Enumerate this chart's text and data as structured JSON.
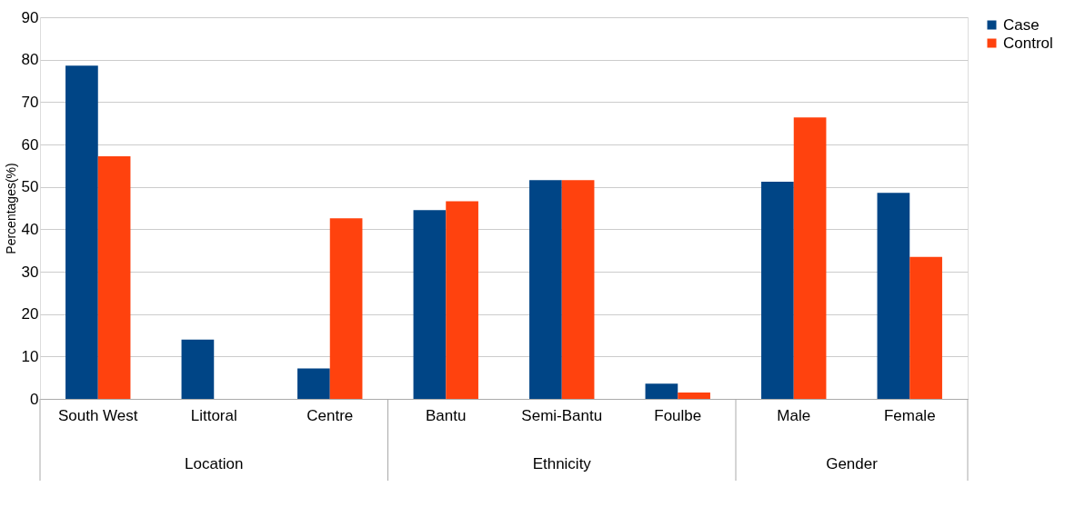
{
  "chart_data": {
    "type": "bar",
    "ylabel": "Percentages(%)",
    "categories": [
      "South West",
      "Littoral",
      "Centre",
      "Bantu",
      "Semi-Bantu",
      "Foulbe",
      "Male",
      "Female"
    ],
    "series": [
      {
        "name": "Case",
        "color": "#004586",
        "values": [
          78.6,
          14.0,
          7.2,
          44.5,
          51.6,
          3.6,
          51.2,
          48.6
        ]
      },
      {
        "name": "Control",
        "color": "#ff420e",
        "values": [
          57.2,
          0,
          42.6,
          46.6,
          51.6,
          1.5,
          66.4,
          33.5
        ]
      }
    ],
    "annotations": [
      "Location",
      "Ethnicity",
      "Gender"
    ],
    "ylim": [
      0,
      90
    ],
    "yticks": [
      0,
      10,
      20,
      30,
      40,
      50,
      60,
      70,
      80,
      90
    ],
    "grid": "y",
    "legend": "right"
  }
}
